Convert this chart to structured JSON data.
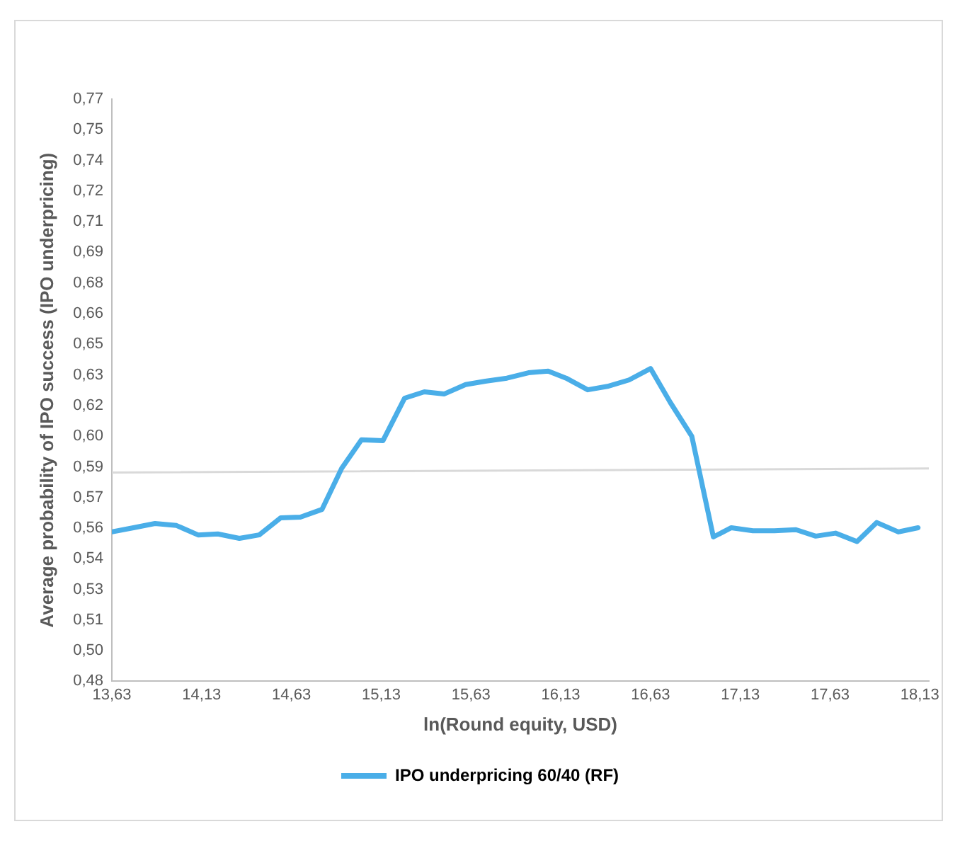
{
  "chart_data": {
    "type": "line",
    "xlabel": "ln(Round equity, USD)",
    "ylabel": "Average probability of IPO success (IPO underpricing)",
    "xlim": [
      13.63,
      18.18
    ],
    "xticks": [
      {
        "value": 13.63,
        "label": "13,63"
      },
      {
        "value": 14.13,
        "label": "14,13"
      },
      {
        "value": 14.63,
        "label": "14,63"
      },
      {
        "value": 15.13,
        "label": "15,13"
      },
      {
        "value": 15.63,
        "label": "15,63"
      },
      {
        "value": 16.13,
        "label": "16,13"
      },
      {
        "value": 16.63,
        "label": "16,63"
      },
      {
        "value": 17.13,
        "label": "17,13"
      },
      {
        "value": 17.63,
        "label": "17,63"
      },
      {
        "value": 18.13,
        "label": "18,13"
      }
    ],
    "ylim": [
      0.48,
      0.77
    ],
    "yticks": [
      {
        "value": 0.48,
        "label": "0,48"
      },
      {
        "value": 0.4953,
        "label": "0,50"
      },
      {
        "value": 0.5105,
        "label": "0,51"
      },
      {
        "value": 0.5258,
        "label": "0,53"
      },
      {
        "value": 0.5411,
        "label": "0,54"
      },
      {
        "value": 0.5563,
        "label": "0,56"
      },
      {
        "value": 0.5716,
        "label": "0,57"
      },
      {
        "value": 0.5868,
        "label": "0,59"
      },
      {
        "value": 0.6021,
        "label": "0,60"
      },
      {
        "value": 0.6174,
        "label": "0,62"
      },
      {
        "value": 0.6326,
        "label": "0,63"
      },
      {
        "value": 0.6479,
        "label": "0,65"
      },
      {
        "value": 0.6632,
        "label": "0,66"
      },
      {
        "value": 0.6784,
        "label": "0,68"
      },
      {
        "value": 0.6937,
        "label": "0,69"
      },
      {
        "value": 0.7089,
        "label": "0,71"
      },
      {
        "value": 0.7242,
        "label": "0,72"
      },
      {
        "value": 0.7395,
        "label": "0,74"
      },
      {
        "value": 0.7547,
        "label": "0,75"
      },
      {
        "value": 0.77,
        "label": "0,77"
      }
    ],
    "series": [
      {
        "name": "IPO underpricing 60/40 (RF)",
        "color": "#4aaee8",
        "x": [
          13.63,
          13.75,
          13.87,
          13.99,
          14.11,
          14.22,
          14.34,
          14.45,
          14.57,
          14.68,
          14.8,
          14.91,
          15.02,
          15.14,
          15.26,
          15.37,
          15.48,
          15.6,
          15.71,
          15.83,
          15.95,
          16.06,
          16.16,
          16.28,
          16.39,
          16.51,
          16.63,
          16.74,
          16.86,
          16.98,
          17.08,
          17.2,
          17.32,
          17.44,
          17.55,
          17.66,
          17.78,
          17.89,
          18.01,
          18.12
        ],
        "values": [
          0.5544,
          0.5565,
          0.5586,
          0.5576,
          0.5529,
          0.5534,
          0.5512,
          0.5529,
          0.5614,
          0.5618,
          0.5656,
          0.5861,
          0.6003,
          0.5999,
          0.621,
          0.6242,
          0.6231,
          0.6278,
          0.6295,
          0.631,
          0.6337,
          0.6345,
          0.631,
          0.6252,
          0.6269,
          0.6301,
          0.6358,
          0.6189,
          0.602,
          0.5519,
          0.5565,
          0.555,
          0.555,
          0.5555,
          0.5523,
          0.5538,
          0.5496,
          0.5591,
          0.5544,
          0.5565
        ]
      },
      {
        "color": "#d9d9d9",
        "x": [
          13.63,
          18.18
        ],
        "values": [
          0.584,
          0.586
        ]
      }
    ],
    "grid": false,
    "legend": "bottom",
    "marker": "none",
    "line_style": "solid"
  }
}
